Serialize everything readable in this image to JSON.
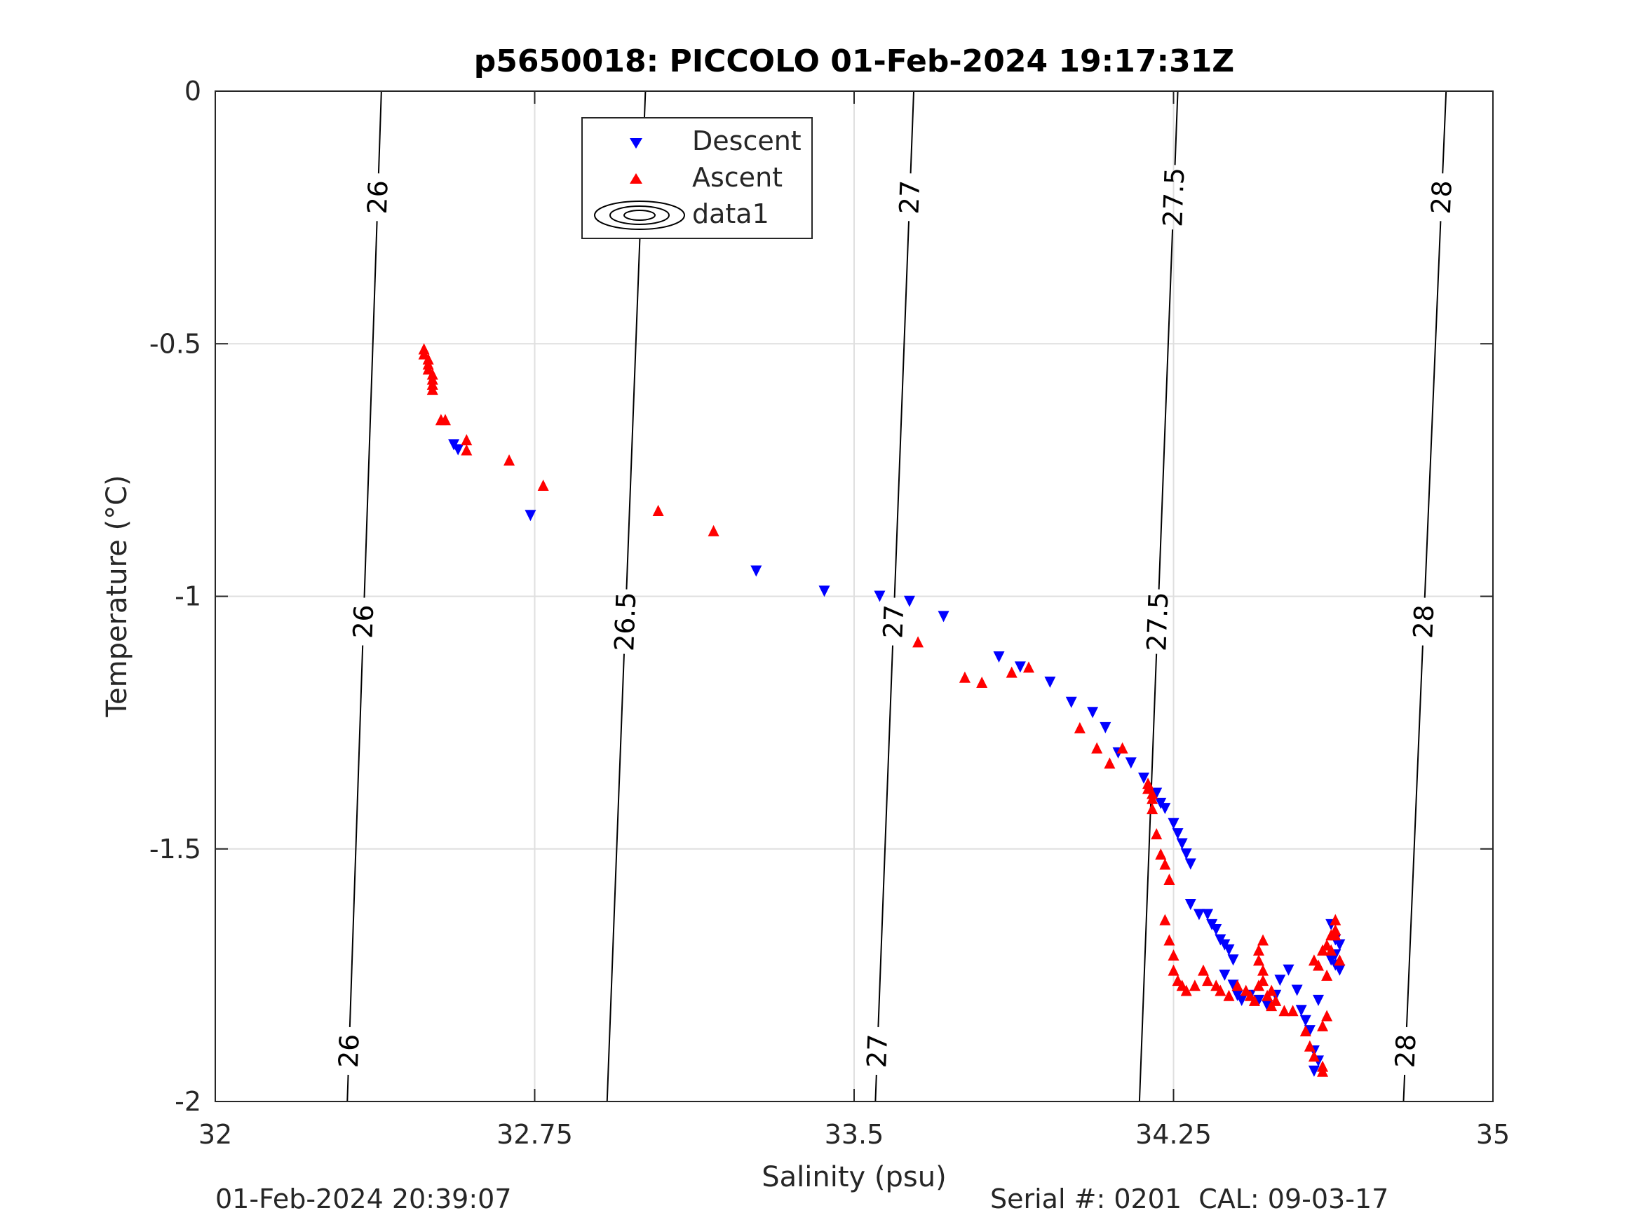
{
  "chart_data": {
    "type": "scatter",
    "title": "p5650018: PICCOLO 01-Feb-2024 19:17:31Z",
    "xlabel": "Salinity (psu)",
    "ylabel": "Temperature (°C)",
    "xlim": [
      32,
      35
    ],
    "ylim": [
      -2,
      0
    ],
    "xticks": [
      32,
      32.75,
      33.5,
      34.25,
      35
    ],
    "xtick_labels": [
      "32",
      "32.75",
      "33.5",
      "34.25",
      "35"
    ],
    "yticks": [
      0,
      -0.5,
      -1,
      -1.5,
      -2
    ],
    "ytick_labels": [
      "0",
      "-0.5",
      "-1",
      "-1.5",
      "-2"
    ],
    "grid": true,
    "legend": {
      "position": "top-center",
      "entries": [
        {
          "label": "Descent",
          "marker": "triangle-down",
          "color": "#0000ff"
        },
        {
          "label": "Ascent",
          "marker": "triangle-up",
          "color": "#ff0000"
        },
        {
          "label": "data1",
          "marker": "contour",
          "color": "#000000"
        }
      ]
    },
    "series": [
      {
        "name": "Descent",
        "color": "#0000ff",
        "marker": "triangle-down",
        "points": [
          [
            32.56,
            -0.7
          ],
          [
            32.57,
            -0.71
          ],
          [
            32.74,
            -0.84
          ],
          [
            33.27,
            -0.95
          ],
          [
            33.43,
            -0.99
          ],
          [
            33.56,
            -1.0
          ],
          [
            33.63,
            -1.01
          ],
          [
            33.71,
            -1.04
          ],
          [
            33.84,
            -1.12
          ],
          [
            33.89,
            -1.14
          ],
          [
            33.96,
            -1.17
          ],
          [
            34.01,
            -1.21
          ],
          [
            34.06,
            -1.23
          ],
          [
            34.09,
            -1.26
          ],
          [
            34.12,
            -1.31
          ],
          [
            34.15,
            -1.33
          ],
          [
            34.18,
            -1.36
          ],
          [
            34.21,
            -1.39
          ],
          [
            34.22,
            -1.41
          ],
          [
            34.23,
            -1.42
          ],
          [
            34.25,
            -1.45
          ],
          [
            34.26,
            -1.47
          ],
          [
            34.27,
            -1.49
          ],
          [
            34.28,
            -1.51
          ],
          [
            34.29,
            -1.53
          ],
          [
            34.29,
            -1.61
          ],
          [
            34.31,
            -1.63
          ],
          [
            34.33,
            -1.63
          ],
          [
            34.34,
            -1.65
          ],
          [
            34.35,
            -1.66
          ],
          [
            34.36,
            -1.68
          ],
          [
            34.37,
            -1.69
          ],
          [
            34.38,
            -1.7
          ],
          [
            34.39,
            -1.72
          ],
          [
            34.37,
            -1.75
          ],
          [
            34.39,
            -1.77
          ],
          [
            34.4,
            -1.79
          ],
          [
            34.41,
            -1.8
          ],
          [
            34.43,
            -1.79
          ],
          [
            34.45,
            -1.8
          ],
          [
            34.47,
            -1.81
          ],
          [
            34.49,
            -1.79
          ],
          [
            34.5,
            -1.76
          ],
          [
            34.52,
            -1.74
          ],
          [
            34.54,
            -1.78
          ],
          [
            34.55,
            -1.82
          ],
          [
            34.56,
            -1.84
          ],
          [
            34.57,
            -1.86
          ],
          [
            34.58,
            -1.9
          ],
          [
            34.58,
            -1.94
          ],
          [
            34.59,
            -1.92
          ],
          [
            34.59,
            -1.8
          ],
          [
            34.62,
            -1.65
          ],
          [
            34.63,
            -1.68
          ],
          [
            34.63,
            -1.71
          ],
          [
            34.63,
            -1.73
          ],
          [
            34.64,
            -1.74
          ],
          [
            34.64,
            -1.69
          ],
          [
            34.62,
            -1.72
          ]
        ]
      },
      {
        "name": "Ascent",
        "color": "#ff0000",
        "marker": "triangle-up",
        "points": [
          [
            32.49,
            -0.51
          ],
          [
            32.49,
            -0.52
          ],
          [
            32.5,
            -0.53
          ],
          [
            32.5,
            -0.54
          ],
          [
            32.5,
            -0.55
          ],
          [
            32.51,
            -0.56
          ],
          [
            32.51,
            -0.57
          ],
          [
            32.51,
            -0.58
          ],
          [
            32.51,
            -0.59
          ],
          [
            32.53,
            -0.65
          ],
          [
            32.54,
            -0.65
          ],
          [
            32.59,
            -0.69
          ],
          [
            32.59,
            -0.71
          ],
          [
            32.69,
            -0.73
          ],
          [
            32.77,
            -0.78
          ],
          [
            33.04,
            -0.83
          ],
          [
            33.17,
            -0.87
          ],
          [
            33.65,
            -1.09
          ],
          [
            33.76,
            -1.16
          ],
          [
            33.8,
            -1.17
          ],
          [
            33.87,
            -1.15
          ],
          [
            33.91,
            -1.14
          ],
          [
            34.03,
            -1.26
          ],
          [
            34.07,
            -1.3
          ],
          [
            34.1,
            -1.33
          ],
          [
            34.13,
            -1.3
          ],
          [
            34.19,
            -1.37
          ],
          [
            34.19,
            -1.38
          ],
          [
            34.2,
            -1.39
          ],
          [
            34.2,
            -1.4
          ],
          [
            34.2,
            -1.42
          ],
          [
            34.21,
            -1.47
          ],
          [
            34.22,
            -1.51
          ],
          [
            34.23,
            -1.53
          ],
          [
            34.24,
            -1.56
          ],
          [
            34.23,
            -1.64
          ],
          [
            34.24,
            -1.68
          ],
          [
            34.25,
            -1.71
          ],
          [
            34.25,
            -1.74
          ],
          [
            34.26,
            -1.76
          ],
          [
            34.27,
            -1.77
          ],
          [
            34.28,
            -1.78
          ],
          [
            34.3,
            -1.77
          ],
          [
            34.32,
            -1.74
          ],
          [
            34.33,
            -1.76
          ],
          [
            34.35,
            -1.77
          ],
          [
            34.36,
            -1.78
          ],
          [
            34.38,
            -1.79
          ],
          [
            34.4,
            -1.77
          ],
          [
            34.42,
            -1.78
          ],
          [
            34.43,
            -1.79
          ],
          [
            34.44,
            -1.8
          ],
          [
            34.45,
            -1.77
          ],
          [
            34.45,
            -1.72
          ],
          [
            34.45,
            -1.7
          ],
          [
            34.46,
            -1.68
          ],
          [
            34.46,
            -1.74
          ],
          [
            34.46,
            -1.76
          ],
          [
            34.47,
            -1.79
          ],
          [
            34.48,
            -1.81
          ],
          [
            34.48,
            -1.78
          ],
          [
            34.49,
            -1.8
          ],
          [
            34.51,
            -1.82
          ],
          [
            34.53,
            -1.82
          ],
          [
            34.56,
            -1.86
          ],
          [
            34.57,
            -1.89
          ],
          [
            34.58,
            -1.91
          ],
          [
            34.6,
            -1.94
          ],
          [
            34.6,
            -1.93
          ],
          [
            34.6,
            -1.85
          ],
          [
            34.61,
            -1.83
          ],
          [
            34.58,
            -1.72
          ],
          [
            34.59,
            -1.73
          ],
          [
            34.6,
            -1.7
          ],
          [
            34.61,
            -1.69
          ],
          [
            34.62,
            -1.7
          ],
          [
            34.63,
            -1.66
          ],
          [
            34.63,
            -1.67
          ],
          [
            34.63,
            -1.64
          ],
          [
            34.62,
            -1.67
          ],
          [
            34.64,
            -1.72
          ],
          [
            34.61,
            -1.75
          ]
        ]
      }
    ],
    "contours": [
      {
        "label": "26",
        "top_x": 32.39,
        "bottom_x": 32.31,
        "label_y": [
          -0.21,
          -1.05,
          -1.9
        ]
      },
      {
        "label": "26.5",
        "top_x": 33.01,
        "bottom_x": 32.92,
        "label_y": [
          -0.19,
          -1.05
        ]
      },
      {
        "label": "27",
        "top_x": 33.64,
        "bottom_x": 33.55,
        "label_y": [
          -0.21,
          -1.05,
          -1.9
        ]
      },
      {
        "label": "27.5",
        "top_x": 34.26,
        "bottom_x": 34.17,
        "label_y": [
          -0.21,
          -1.05
        ]
      },
      {
        "label": "28",
        "top_x": 34.89,
        "bottom_x": 34.79,
        "label_y": [
          -0.21,
          -1.05,
          -1.9
        ]
      }
    ]
  },
  "footer": {
    "timestamp": "01-Feb-2024 20:39:07",
    "serial": "Serial #: 0201  CAL: 09-03-17"
  }
}
